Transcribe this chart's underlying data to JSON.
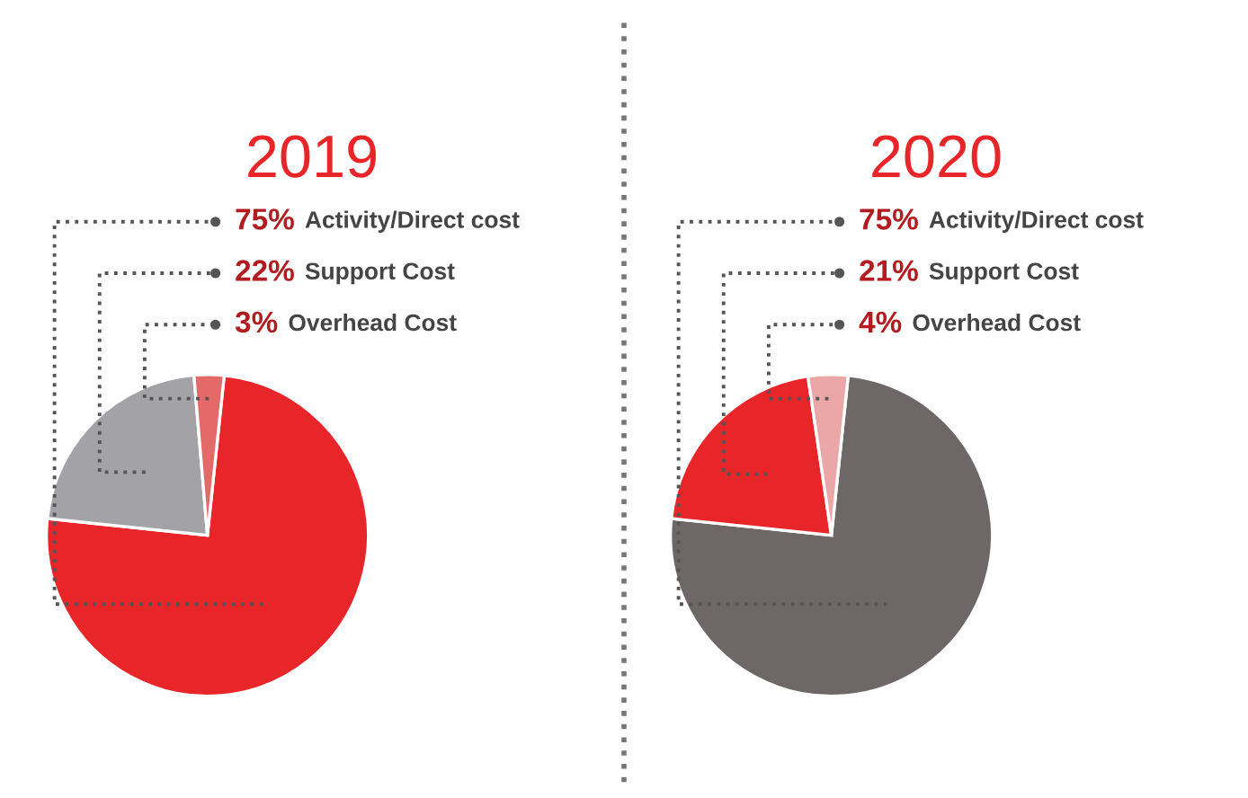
{
  "chart_data": [
    {
      "type": "pie",
      "title": "2019",
      "categories": [
        "Activity/Direct cost",
        "Support Cost",
        "Overhead Cost"
      ],
      "values": [
        75,
        22,
        3
      ],
      "colors": [
        "#e8262a",
        "#a3a2a6",
        "#e46a6a"
      ],
      "value_labels": [
        "75%",
        "22%",
        "3%"
      ]
    },
    {
      "type": "pie",
      "title": "2020",
      "categories": [
        "Activity/Direct cost",
        "Support Cost",
        "Overhead Cost"
      ],
      "values": [
        75,
        21,
        4
      ],
      "colors": [
        "#6e6767",
        "#e8262a",
        "#eba7a8"
      ],
      "value_labels": [
        "75%",
        "21%",
        "4%"
      ]
    }
  ]
}
